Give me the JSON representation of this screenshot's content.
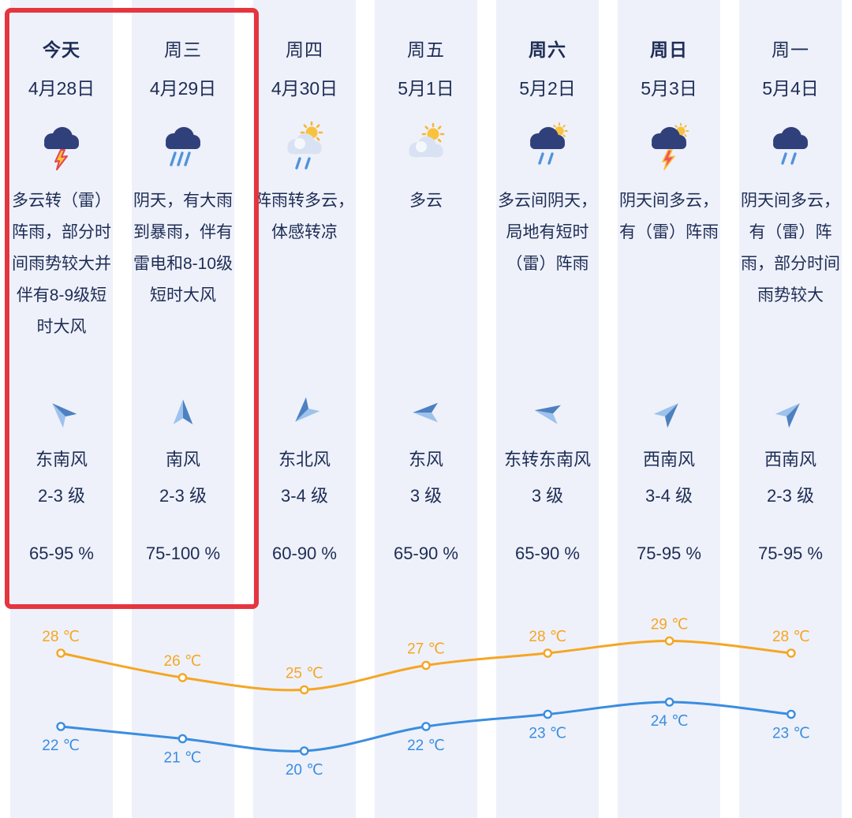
{
  "days": [
    {
      "label": "今天",
      "date": "4月28日",
      "bold": true,
      "icon": "thunder-rain",
      "desc": "多云转（雷）阵雨，部分时间雨势较大并伴有8-9级短时大风",
      "wind_dir": "东南风",
      "wind_level": "2-3 级",
      "humidity": "65-95 %",
      "arrow_deg": -45
    },
    {
      "label": "周三",
      "date": "4月29日",
      "bold": false,
      "icon": "heavy-rain",
      "desc": "阴天，有大雨到暴雨，伴有雷电和8-10级短时大风",
      "wind_dir": "南风",
      "wind_level": "2-3 级",
      "humidity": "75-100 %",
      "arrow_deg": 0
    },
    {
      "label": "周四",
      "date": "4月30日",
      "bold": false,
      "icon": "shower-sun",
      "desc": "阵雨转多云，体感转凉",
      "wind_dir": "东北风",
      "wind_level": "3-4 级",
      "humidity": "60-90 %",
      "arrow_deg": -135
    },
    {
      "label": "周五",
      "date": "5月1日",
      "bold": false,
      "icon": "sun-cloud",
      "desc": "多云",
      "wind_dir": "东风",
      "wind_level": "3 级",
      "humidity": "65-90 %",
      "arrow_deg": -90
    },
    {
      "label": "周六",
      "date": "5月2日",
      "bold": true,
      "icon": "cloud-sun-rain",
      "desc": "多云间阴天，局地有短时（雷）阵雨",
      "wind_dir": "东转东南风",
      "wind_level": "3 级",
      "humidity": "65-90 %",
      "arrow_deg": -80
    },
    {
      "label": "周日",
      "date": "5月3日",
      "bold": true,
      "icon": "thunder-sun",
      "desc": "阴天间多云，有（雷）阵雨",
      "wind_dir": "西南风",
      "wind_level": "3-4 级",
      "humidity": "75-95 %",
      "arrow_deg": 45
    },
    {
      "label": "周一",
      "date": "5月4日",
      "bold": false,
      "icon": "rain",
      "desc": "阴天间多云，有（雷）阵雨，部分时间雨势较大",
      "wind_dir": "西南风",
      "wind_level": "2-3 级",
      "humidity": "75-95 %",
      "arrow_deg": 45
    }
  ],
  "chart_data": {
    "type": "line",
    "categories": [
      "今天",
      "周三",
      "周四",
      "周五",
      "周六",
      "周日",
      "周一"
    ],
    "series": [
      {
        "name": "high",
        "color": "#f5a623",
        "values": [
          28,
          26,
          25,
          27,
          28,
          29,
          28
        ]
      },
      {
        "name": "low",
        "color": "#3a8de0",
        "values": [
          22,
          21,
          20,
          22,
          23,
          24,
          23
        ]
      }
    ],
    "unit": "℃",
    "legend": "none",
    "grid": false
  },
  "highlight": {
    "color": "#e5353e"
  },
  "theme": {
    "column_bg": "#eef1fa",
    "text": "#1e2d55"
  }
}
